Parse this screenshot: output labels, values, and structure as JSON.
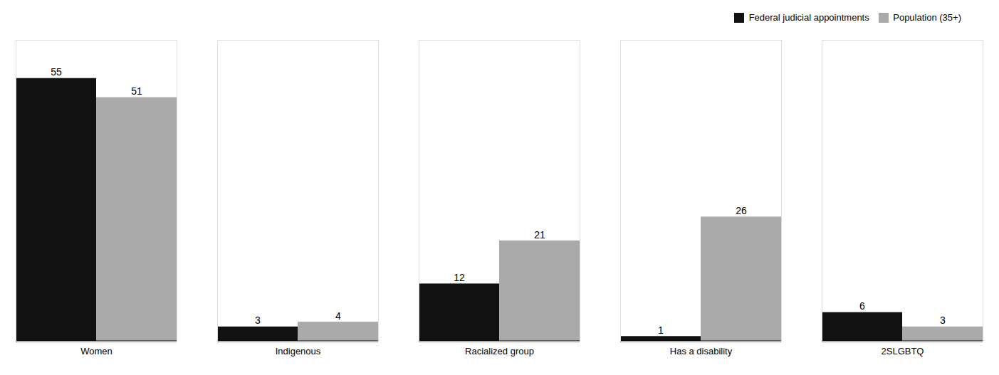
{
  "chart_data": {
    "type": "bar",
    "categories": [
      "Women",
      "Indigenous",
      "Racialized group",
      "Has a disability",
      "2SLGBTQ"
    ],
    "series": [
      {
        "name": "Federal judicial appointments",
        "color": "#111111",
        "values": [
          55,
          3,
          12,
          1,
          6
        ]
      },
      {
        "name": "Population (35+)",
        "color": "#aaaaaa",
        "values": [
          51,
          4,
          21,
          26,
          3
        ]
      }
    ],
    "ylim": [
      0,
      63
    ],
    "data_labels": true,
    "tick_labels": "x",
    "legend": "upper right",
    "grid": false
  }
}
